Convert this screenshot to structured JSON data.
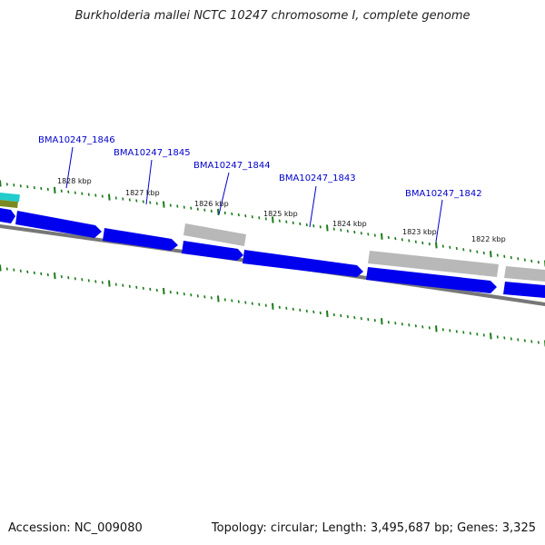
{
  "title": "Burkholderia mallei NCTC 10247 chromosome I, complete genome",
  "footer": {
    "accession": "Accession: NC_009080",
    "summary": "Topology: circular; Length: 3,495,687 bp; Genes: 3,325"
  },
  "colors": {
    "gene_blue": "#0000ee",
    "gene_gray": "#b4b4b4",
    "backbone": "#777777",
    "tick_green": "#1a7a1a",
    "label_blue": "#0000cc",
    "accent_cyan": "#22cccc",
    "accent_olive": "#7a8a20"
  },
  "kbp_labels": [
    "1828 kbp",
    "1827 kbp",
    "1826 kbp",
    "1825 kbp",
    "1824 kbp",
    "1823 kbp",
    "1822 kbp"
  ],
  "gene_labels": [
    "BMA10247_1846",
    "BMA10247_1845",
    "BMA10247_1844",
    "BMA10247_1843",
    "BMA10247_1842"
  ]
}
